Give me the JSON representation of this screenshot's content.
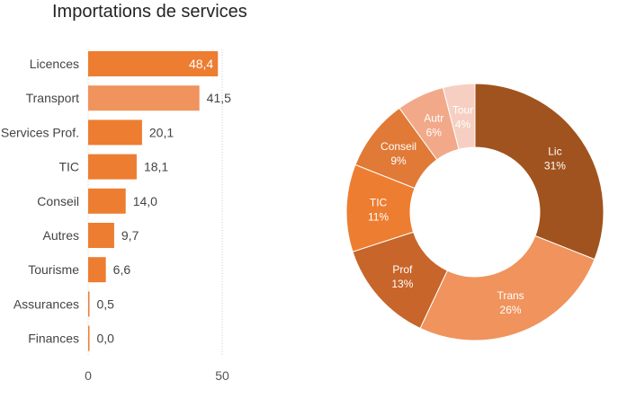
{
  "title": "Importations de services",
  "chart_data": [
    {
      "type": "bar",
      "orientation": "horizontal",
      "categories": [
        "Licences",
        "Transport",
        "Services Prof.",
        "TIC",
        "Conseil",
        "Autres",
        "Tourisme",
        "Assurances",
        "Finances"
      ],
      "values": [
        48.4,
        41.5,
        20.1,
        18.1,
        14.0,
        9.7,
        6.6,
        0.5,
        0.0
      ],
      "value_labels": [
        "48,4",
        "41,5",
        "20,1",
        "18,1",
        "14,0",
        "9,7",
        "6,6",
        "0,5",
        "0,0"
      ],
      "xlim": [
        0,
        50
      ],
      "x_ticks": [
        "0",
        "50"
      ],
      "grid": true,
      "colors": {
        "default": "#ED7D31",
        "highlight": "#F0935D"
      },
      "highlight_index": 1
    },
    {
      "type": "pie",
      "donut": true,
      "slices": [
        {
          "label": "Lic",
          "pct": "31%",
          "value": 31,
          "color": "#A0531E",
          "text_color": "#ffffff"
        },
        {
          "label": "Trans",
          "pct": "26%",
          "value": 26,
          "color": "#F0935D",
          "text_color": "#ffffff"
        },
        {
          "label": "Prof",
          "pct": "13%",
          "value": 13,
          "color": "#C8652A",
          "text_color": "#ffffff"
        },
        {
          "label": "TIC",
          "pct": "11%",
          "value": 11,
          "color": "#ED7D31",
          "text_color": "#ffffff"
        },
        {
          "label": "Conseil",
          "pct": "9%",
          "value": 9,
          "color": "#E07A36",
          "text_color": "#ffffff"
        },
        {
          "label": "Autr",
          "pct": "6%",
          "value": 6,
          "color": "#F2A98A",
          "text_color": "#ffffff"
        },
        {
          "label": "Tour",
          "pct": "4%",
          "value": 4,
          "color": "#F6CFC2",
          "text_color": "#ffffff"
        }
      ]
    }
  ]
}
